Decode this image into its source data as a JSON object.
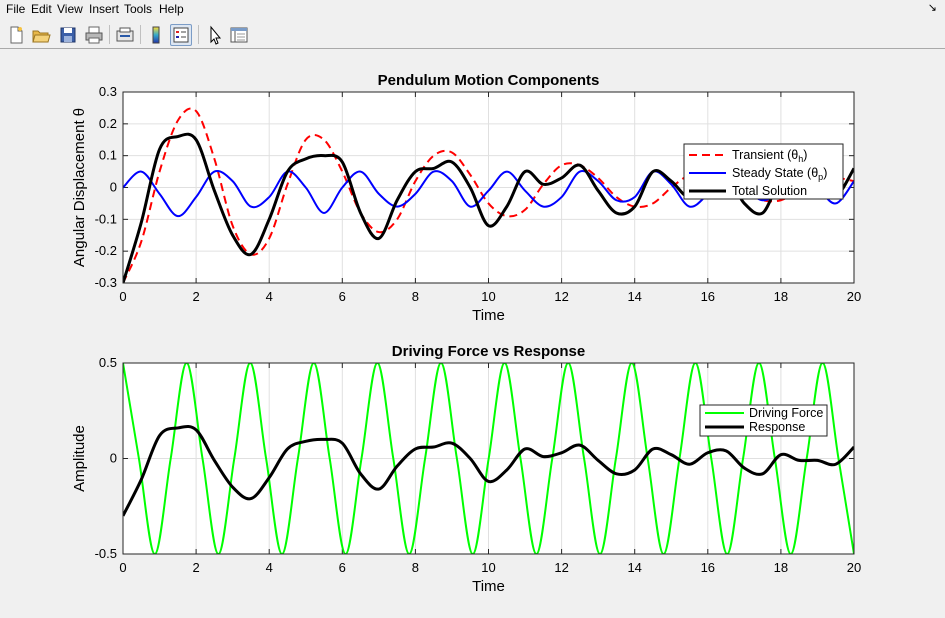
{
  "menu": {
    "items": [
      "File",
      "Edit",
      "View",
      "Insert",
      "Tools",
      "Help"
    ],
    "dock_arrow": "↘"
  },
  "toolbar": {
    "icons": [
      "new-figure-icon",
      "open-file-icon",
      "save-icon",
      "print-icon",
      "link-plot-icon",
      "insert-colorbar-icon",
      "insert-legend-icon",
      "edit-plot-icon",
      "property-inspector-icon"
    ]
  },
  "colors": {
    "transient": "#ff0000",
    "steady": "#0000ff",
    "total": "#000000",
    "driving": "#00ff00",
    "grid": "#e0e0e0"
  },
  "chart_data": [
    {
      "type": "line",
      "title": "Pendulum Motion Components",
      "xlabel": "Time",
      "ylabel": "Angular Displacement θ",
      "xlim": [
        0,
        20
      ],
      "ylim": [
        -0.3,
        0.3
      ],
      "xticks": [
        "0",
        "2",
        "4",
        "6",
        "8",
        "10",
        "12",
        "14",
        "16",
        "18",
        "20"
      ],
      "yticks": [
        "-0.3",
        "-0.2",
        "-0.1",
        "0",
        "0.1",
        "0.2",
        "0.3"
      ],
      "grid": true,
      "legend_position": "top-right",
      "x": [
        0,
        0.5,
        1,
        1.5,
        2,
        2.5,
        3,
        3.5,
        4,
        4.5,
        5,
        5.5,
        6,
        6.5,
        7,
        7.5,
        8,
        8.5,
        9,
        9.5,
        10,
        10.5,
        11,
        11.5,
        12,
        12.5,
        13,
        13.5,
        14,
        14.5,
        15,
        15.5,
        16,
        16.5,
        17,
        17.5,
        18,
        18.5,
        19,
        19.5,
        20
      ],
      "series": [
        {
          "name": "Transient",
          "legend_main": "Transient  (θ",
          "legend_sub": "h",
          "legend_tail": ")",
          "style": "dashed",
          "values": [
            -0.3,
            -0.17,
            0.05,
            0.21,
            0.24,
            0.09,
            -0.12,
            -0.21,
            -0.16,
            0.01,
            0.15,
            0.15,
            0.05,
            -0.08,
            -0.14,
            -0.1,
            0.02,
            0.1,
            0.11,
            0.04,
            -0.05,
            -0.09,
            -0.07,
            0.01,
            0.07,
            0.07,
            0.03,
            -0.03,
            -0.06,
            -0.05,
            0.0,
            0.04,
            0.05,
            0.03,
            -0.01,
            -0.04,
            -0.04,
            -0.01,
            0.02,
            0.03,
            0.02
          ]
        },
        {
          "name": "Steady  State",
          "legend_main": "Steady  State  (θ",
          "legend_sub": "p",
          "legend_tail": ")",
          "style": "solid",
          "values": [
            0.0,
            0.05,
            -0.02,
            -0.09,
            -0.03,
            0.05,
            0.02,
            -0.06,
            -0.03,
            0.05,
            0.0,
            -0.08,
            0.0,
            0.05,
            -0.02,
            -0.06,
            -0.02,
            0.05,
            0.02,
            -0.06,
            -0.01,
            0.05,
            -0.01,
            -0.06,
            -0.03,
            0.05,
            0.02,
            -0.04,
            -0.03,
            0.05,
            0.01,
            -0.06,
            -0.02,
            0.05,
            0.0,
            -0.04,
            -0.01,
            0.05,
            0.0,
            -0.05,
            0.02
          ]
        },
        {
          "name": "Total Solution",
          "legend_main": "Total Solution",
          "legend_sub": "",
          "legend_tail": "",
          "style": "thick",
          "values": [
            -0.3,
            -0.11,
            0.12,
            0.16,
            0.15,
            -0.01,
            -0.15,
            -0.21,
            -0.1,
            0.05,
            0.09,
            0.1,
            0.08,
            -0.08,
            -0.16,
            -0.04,
            0.05,
            0.06,
            0.08,
            0.0,
            -0.12,
            -0.06,
            0.05,
            0.01,
            0.03,
            0.07,
            -0.01,
            -0.08,
            -0.06,
            0.05,
            0.02,
            -0.03,
            0.03,
            0.04,
            -0.05,
            -0.08,
            0.02,
            -0.01,
            -0.01,
            -0.03,
            0.06
          ]
        }
      ]
    },
    {
      "type": "line",
      "title": "Driving Force vs Response",
      "xlabel": "Time",
      "ylabel": "Amplitude",
      "xlim": [
        0,
        20
      ],
      "ylim": [
        -0.5,
        0.5
      ],
      "xticks": [
        "0",
        "2",
        "4",
        "6",
        "8",
        "10",
        "12",
        "14",
        "16",
        "18",
        "20"
      ],
      "yticks": [
        "-0.5",
        "0",
        "0.5"
      ],
      "grid": true,
      "legend_position": "right",
      "driving_force": {
        "name": "Driving Force",
        "amplitude": 0.5,
        "period": 1.74,
        "phase": "cosine",
        "x": [
          0,
          0.435,
          0.87,
          1.305,
          1.74,
          2.175,
          2.61,
          3.045,
          3.48,
          3.915,
          4.35,
          4.785,
          5.22,
          5.655,
          6.09,
          6.525,
          6.96,
          7.395,
          7.83,
          8.265,
          8.7,
          9.135,
          9.57,
          10.005,
          10.44,
          10.875,
          11.31,
          11.745,
          12.18,
          12.615,
          13.05,
          13.485,
          13.92,
          14.355,
          14.79,
          15.225,
          15.66,
          16.095,
          16.53,
          16.965,
          17.4,
          17.835,
          18.27,
          18.705,
          19.14,
          19.575,
          20
        ],
        "values": [
          0.5,
          0,
          -0.5,
          0,
          0.5,
          0,
          -0.5,
          0,
          0.5,
          0,
          -0.5,
          0,
          0.5,
          0,
          -0.5,
          0,
          0.5,
          0,
          -0.5,
          0,
          0.5,
          0,
          -0.5,
          0,
          0.5,
          0,
          -0.5,
          0,
          0.5,
          0,
          -0.5,
          0,
          0.5,
          0,
          -0.5,
          0,
          0.5,
          0,
          -0.5,
          0,
          0.5,
          0,
          -0.5,
          0,
          0.5,
          0,
          -0.5
        ]
      },
      "response": {
        "name": "Response"
      }
    }
  ]
}
